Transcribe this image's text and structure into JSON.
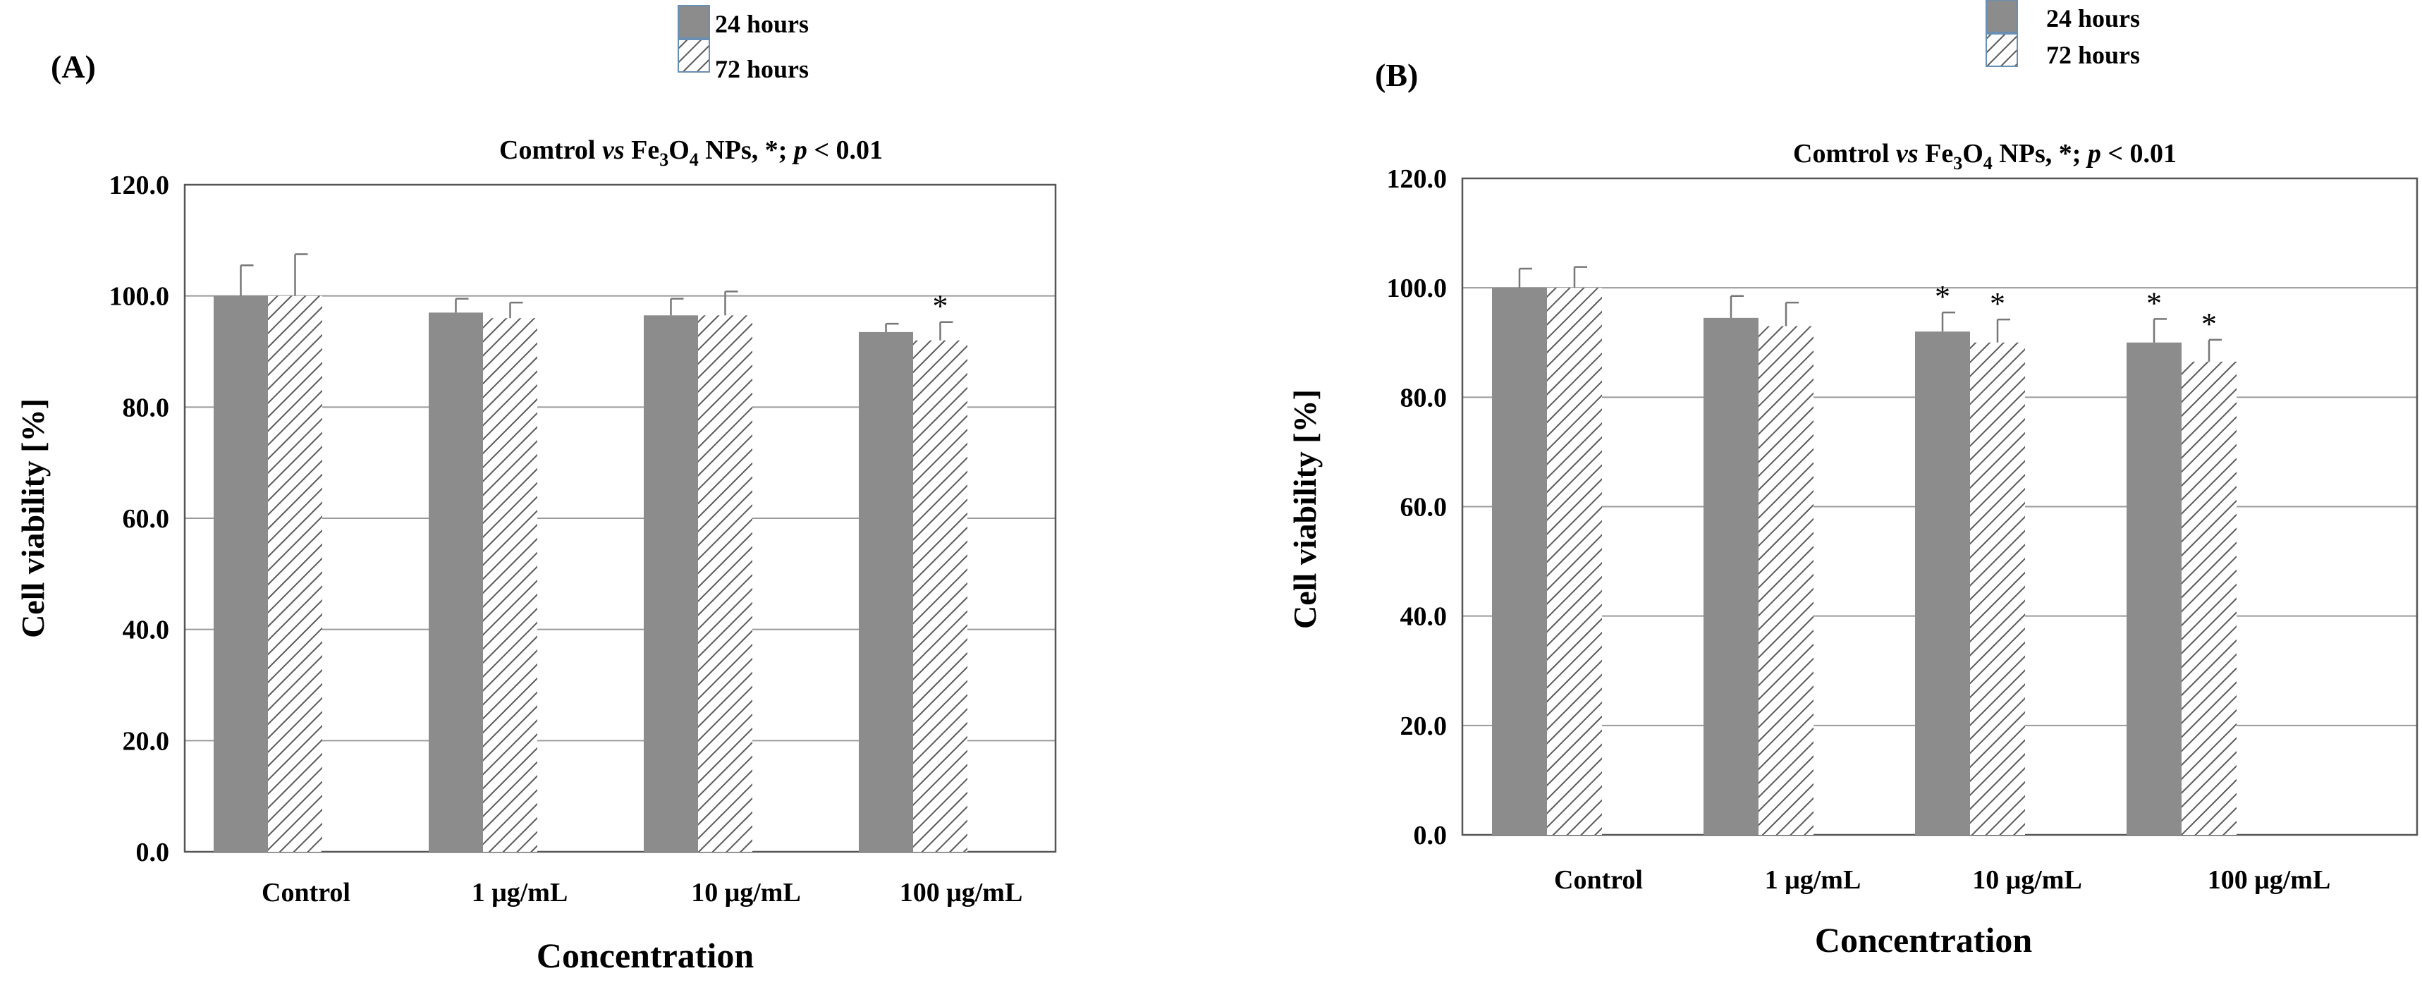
{
  "colors": {
    "bar_24h": "#8c8c8c",
    "hatch": "#5a5a5a",
    "axis": "#555555",
    "grid": "#9a9a9a",
    "text": "#000000"
  },
  "chart_data": [
    {
      "panel_label": "(A)",
      "type": "bar",
      "legend": [
        "24 hours",
        "72 hours"
      ],
      "stat_note": {
        "lead": "Comtrol ",
        "vs": "vs",
        "fe": " Fe",
        "sub3": "3",
        "o": "O",
        "sub4": "4",
        "rest": " NPs, ",
        "star": "*",
        "semi": "; ",
        "p": "p",
        "tail": " < 0.01"
      },
      "ylabel": "Cell viability [%]",
      "xlabel": "Concentration",
      "ylim": [
        0,
        120
      ],
      "yticks": [
        "0.0",
        "20.0",
        "40.0",
        "60.0",
        "80.0",
        "100.0",
        "120.0"
      ],
      "categories": [
        "Control",
        "1 μg/mL",
        "10 μg/mL",
        "100 μg/mL"
      ],
      "series": [
        {
          "name": "24 hours",
          "values": [
            100.0,
            97.0,
            96.5,
            93.5
          ],
          "errors": [
            5.5,
            2.5,
            3.0,
            1.5
          ],
          "significant": [
            false,
            false,
            false,
            false
          ]
        },
        {
          "name": "72 hours",
          "values": [
            100.0,
            96.0,
            96.5,
            92.0
          ],
          "errors": [
            7.5,
            2.8,
            4.3,
            3.3
          ],
          "significant": [
            false,
            false,
            false,
            true
          ]
        }
      ]
    },
    {
      "panel_label": "(B)",
      "type": "bar",
      "legend": [
        "24 hours",
        "72 hours"
      ],
      "stat_note": {
        "lead": "Comtrol ",
        "vs": "vs",
        "fe": " Fe",
        "sub3": "3",
        "o": "O",
        "sub4": "4",
        "rest": " NPs, ",
        "star": "*",
        "semi": "; ",
        "p": "p",
        "tail": " < 0.01"
      },
      "ylabel": "Cell viability [%]",
      "xlabel": "Concentration",
      "ylim": [
        0,
        120
      ],
      "yticks": [
        "0.0",
        "20.0",
        "40.0",
        "60.0",
        "80.0",
        "100.0",
        "120.0"
      ],
      "categories": [
        "Control",
        "1 μg/mL",
        "10 μg/mL",
        "100 μg/mL"
      ],
      "series": [
        {
          "name": "24 hours",
          "values": [
            100.0,
            94.5,
            92.0,
            90.0
          ],
          "errors": [
            3.5,
            4.0,
            3.5,
            4.3
          ],
          "significant": [
            false,
            false,
            true,
            true
          ]
        },
        {
          "name": "72 hours",
          "values": [
            100.0,
            93.0,
            90.0,
            86.5
          ],
          "errors": [
            3.8,
            4.3,
            4.2,
            4.0
          ],
          "significant": [
            false,
            false,
            true,
            true
          ]
        }
      ]
    }
  ]
}
